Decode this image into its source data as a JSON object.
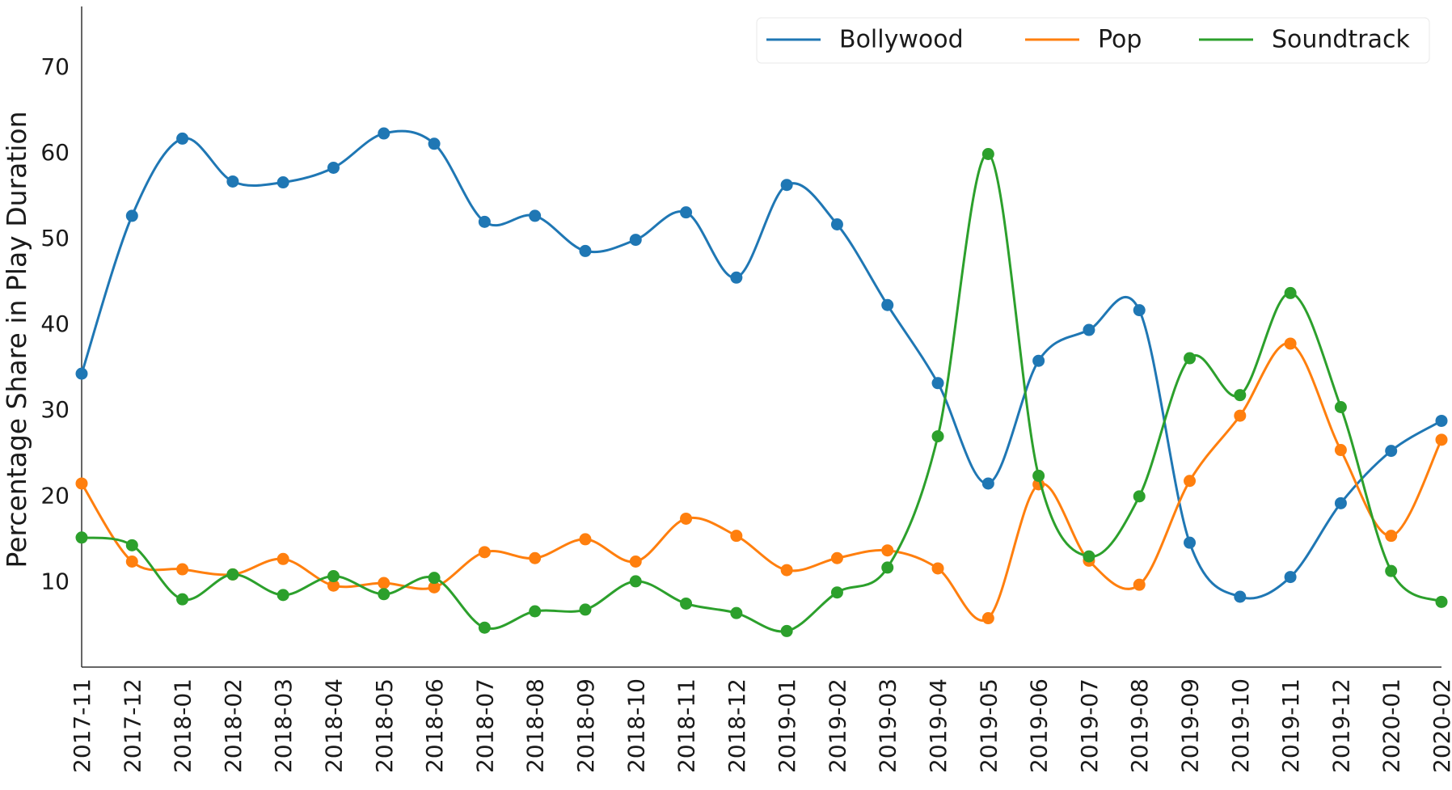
{
  "chart_data": {
    "type": "line",
    "title": "",
    "xlabel": "",
    "ylabel": "Percentage Share in Play Duration",
    "grid": false,
    "legend_position": "top-right",
    "ylim": [
      0,
      77
    ],
    "yticks": [
      10,
      20,
      30,
      40,
      50,
      60,
      70
    ],
    "categories": [
      "2017-11",
      "2017-12",
      "2018-01",
      "2018-02",
      "2018-03",
      "2018-04",
      "2018-05",
      "2018-06",
      "2018-07",
      "2018-08",
      "2018-09",
      "2018-10",
      "2018-11",
      "2018-12",
      "2019-01",
      "2019-02",
      "2019-03",
      "2019-04",
      "2019-05",
      "2019-06",
      "2019-07",
      "2019-08",
      "2019-09",
      "2019-10",
      "2019-11",
      "2019-12",
      "2020-01",
      "2020-02"
    ],
    "series": [
      {
        "name": "Bollywood",
        "color": "#1f77b4",
        "values": [
          34.2,
          52.6,
          61.6,
          56.6,
          56.5,
          58.2,
          62.2,
          61.0,
          51.9,
          52.6,
          48.5,
          49.8,
          53.0,
          45.4,
          56.2,
          51.6,
          42.2,
          33.1,
          21.4,
          35.7,
          39.3,
          41.6,
          14.5,
          8.2,
          10.5,
          19.1,
          25.2,
          28.7
        ]
      },
      {
        "name": "Pop",
        "color": "#ff7f0e",
        "values": [
          21.4,
          12.3,
          11.4,
          10.8,
          12.6,
          9.5,
          9.8,
          9.3,
          13.4,
          12.7,
          14.9,
          12.3,
          17.3,
          15.3,
          11.3,
          12.7,
          13.6,
          11.5,
          5.7,
          21.3,
          12.4,
          9.6,
          21.7,
          29.3,
          37.7,
          25.3,
          15.3,
          26.5
        ]
      },
      {
        "name": "Soundtrack",
        "color": "#2ca02c",
        "values": [
          15.1,
          14.2,
          7.9,
          10.8,
          8.4,
          10.6,
          8.5,
          10.4,
          4.6,
          6.5,
          6.7,
          10.0,
          7.4,
          6.3,
          4.2,
          8.7,
          11.6,
          26.9,
          59.8,
          22.3,
          12.9,
          19.9,
          36.0,
          31.7,
          43.6,
          30.3,
          11.2,
          7.6
        ]
      }
    ]
  }
}
